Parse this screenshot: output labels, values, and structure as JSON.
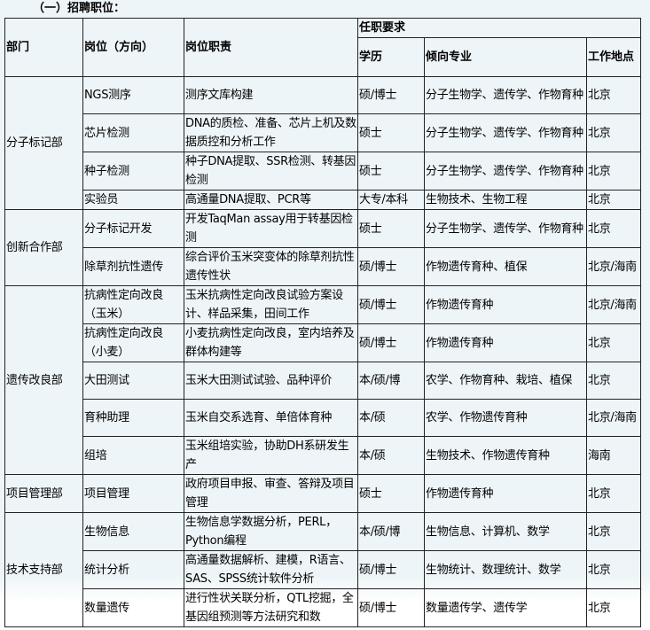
{
  "section_title": "（一）招聘职位：",
  "headers": {
    "dept": "部门",
    "position": "岗位（方向）",
    "duty": "岗位职责",
    "requirements": "任职要求",
    "education": "学历",
    "major": "倾向专业",
    "location": "工作地点"
  },
  "departments": [
    {
      "name": "分子标记部",
      "rows": [
        {
          "position": "NGS测序",
          "duty": "测序文库构建",
          "education": "硕/博士",
          "major": "分子生物学、遗传学、作物育种",
          "location": "北京"
        },
        {
          "position": "芯片检测",
          "duty": "DNA的质检、准备、芯片上机及数据质控和分析工作",
          "education": "硕士",
          "major": "分子生物学、遗传学、作物育种",
          "location": "北京"
        },
        {
          "position": "种子检测",
          "duty": "种子DNA提取、SSR检测、转基因检测",
          "education": "硕士",
          "major": "分子生物学、遗传学、作物育种",
          "location": "北京"
        },
        {
          "position": "实验员",
          "duty": "高通量DNA提取、PCR等",
          "education": "大专/本科",
          "major": "生物技术、生物工程",
          "location": "北京",
          "short": true
        }
      ]
    },
    {
      "name": "创新合作部",
      "rows": [
        {
          "position": "分子标记开发",
          "duty": "开发TaqMan assay用于转基因检测",
          "education": "硕士",
          "major": "分子生物学、遗传学、作物育种",
          "location": "北京"
        },
        {
          "position": "除草剂抗性遗传",
          "duty": "综合评价玉米突变体的除草剂抗性遗传性状",
          "education": "硕/博士",
          "major": "作物遗传育种、植保",
          "location": "北京/海南"
        }
      ]
    },
    {
      "name": "遗传改良部",
      "rows": [
        {
          "position": "抗病性定向改良（玉米）",
          "duty": "玉米抗病性定向改良试验方案设计、样品采集，田间工作",
          "education": "硕/博士",
          "major": "作物遗传育种",
          "location": "北京/海南"
        },
        {
          "position": "抗病性定向改良（小麦）",
          "duty": "小麦抗病性定向改良，室内培养及群体构建等",
          "education": "硕/博士",
          "major": "作物遗传育种",
          "location": "北京"
        },
        {
          "position": "大田测试",
          "duty": "玉米大田测试试验、品种评价",
          "education": "本/硕/博",
          "major": "农学、作物育种、栽培、植保",
          "location": "北京"
        },
        {
          "position": "育种助理",
          "duty": "玉米自交系选育、单倍体育种",
          "education": "本/硕",
          "major": "农学、作物遗传育种",
          "location": "北京/海南"
        },
        {
          "position": "组培",
          "duty": "玉米组培实验，协助DH系研发生产",
          "education": "本/硕",
          "major": "生物技术、作物遗传育种",
          "location": "海南"
        }
      ]
    },
    {
      "name": "项目管理部",
      "rows": [
        {
          "position": "项目管理",
          "duty": "政府项目申报、审查、答辩及项目管理",
          "education": "硕士",
          "major": "作物遗传育种",
          "location": "北京"
        }
      ]
    },
    {
      "name": "技术支持部",
      "rows": [
        {
          "position": "生物信息",
          "duty": "生物信息学数据分析，PERL，Python编程",
          "education": "本/硕/博",
          "major": "生物信息、计算机、数学",
          "location": "北京"
        },
        {
          "position": "统计分析",
          "duty": "高通量数据解析、建模，R语言、SAS、SPSS统计软件分析",
          "education": "硕/博士",
          "major": "生物统计、数理统计、数学",
          "location": "北京"
        },
        {
          "position": "数量遗传",
          "duty": "进行性状关联分析，QTL挖掘，全基因组预测等方法研究和数",
          "education": "硕/博士",
          "major": "数量遗传学、遗传学",
          "location": "北京"
        }
      ]
    }
  ]
}
